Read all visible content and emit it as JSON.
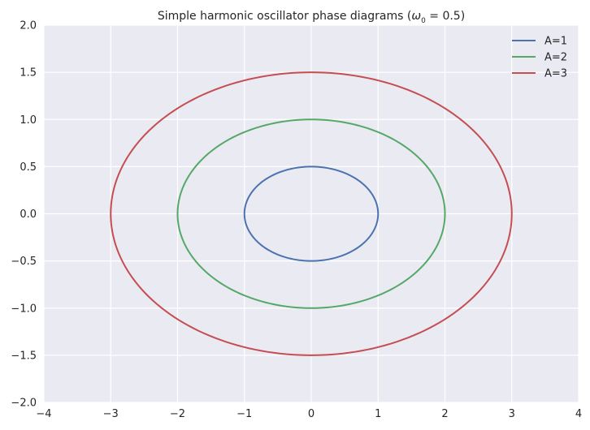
{
  "chart_data": {
    "type": "line",
    "title": "Simple harmonic oscillator phase diagrams ",
    "title_math_prefix": "(",
    "title_math_omega": "ω",
    "title_math_subscript": "0",
    "title_math_rest": " = 0.5)",
    "xlabel": "",
    "ylabel": "",
    "xlim": [
      -4,
      4
    ],
    "ylim": [
      -2,
      2
    ],
    "xticks": [
      -4,
      -3,
      -2,
      -1,
      0,
      1,
      2,
      3,
      4
    ],
    "yticks": [
      -2.0,
      -1.5,
      -1.0,
      -0.5,
      0.0,
      0.5,
      1.0,
      1.5,
      2.0
    ],
    "xtick_labels": [
      "−4",
      "−3",
      "−2",
      "−1",
      "0",
      "1",
      "2",
      "3",
      "4"
    ],
    "ytick_labels": [
      "−2.0",
      "−1.5",
      "−1.0",
      "−0.5",
      "0.0",
      "0.5",
      "1.0",
      "1.5",
      "2.0"
    ],
    "grid": true,
    "legend_position": "top-right",
    "background_color": "#eaeaf2",
    "grid_color": "#ffffff",
    "omega0": 0.5,
    "series": [
      {
        "name": "A=1",
        "amplitude": 1,
        "color": "#4c72b0"
      },
      {
        "name": "A=2",
        "amplitude": 2,
        "color": "#55a868"
      },
      {
        "name": "A=3",
        "amplitude": 3,
        "color": "#c44e52"
      }
    ]
  }
}
